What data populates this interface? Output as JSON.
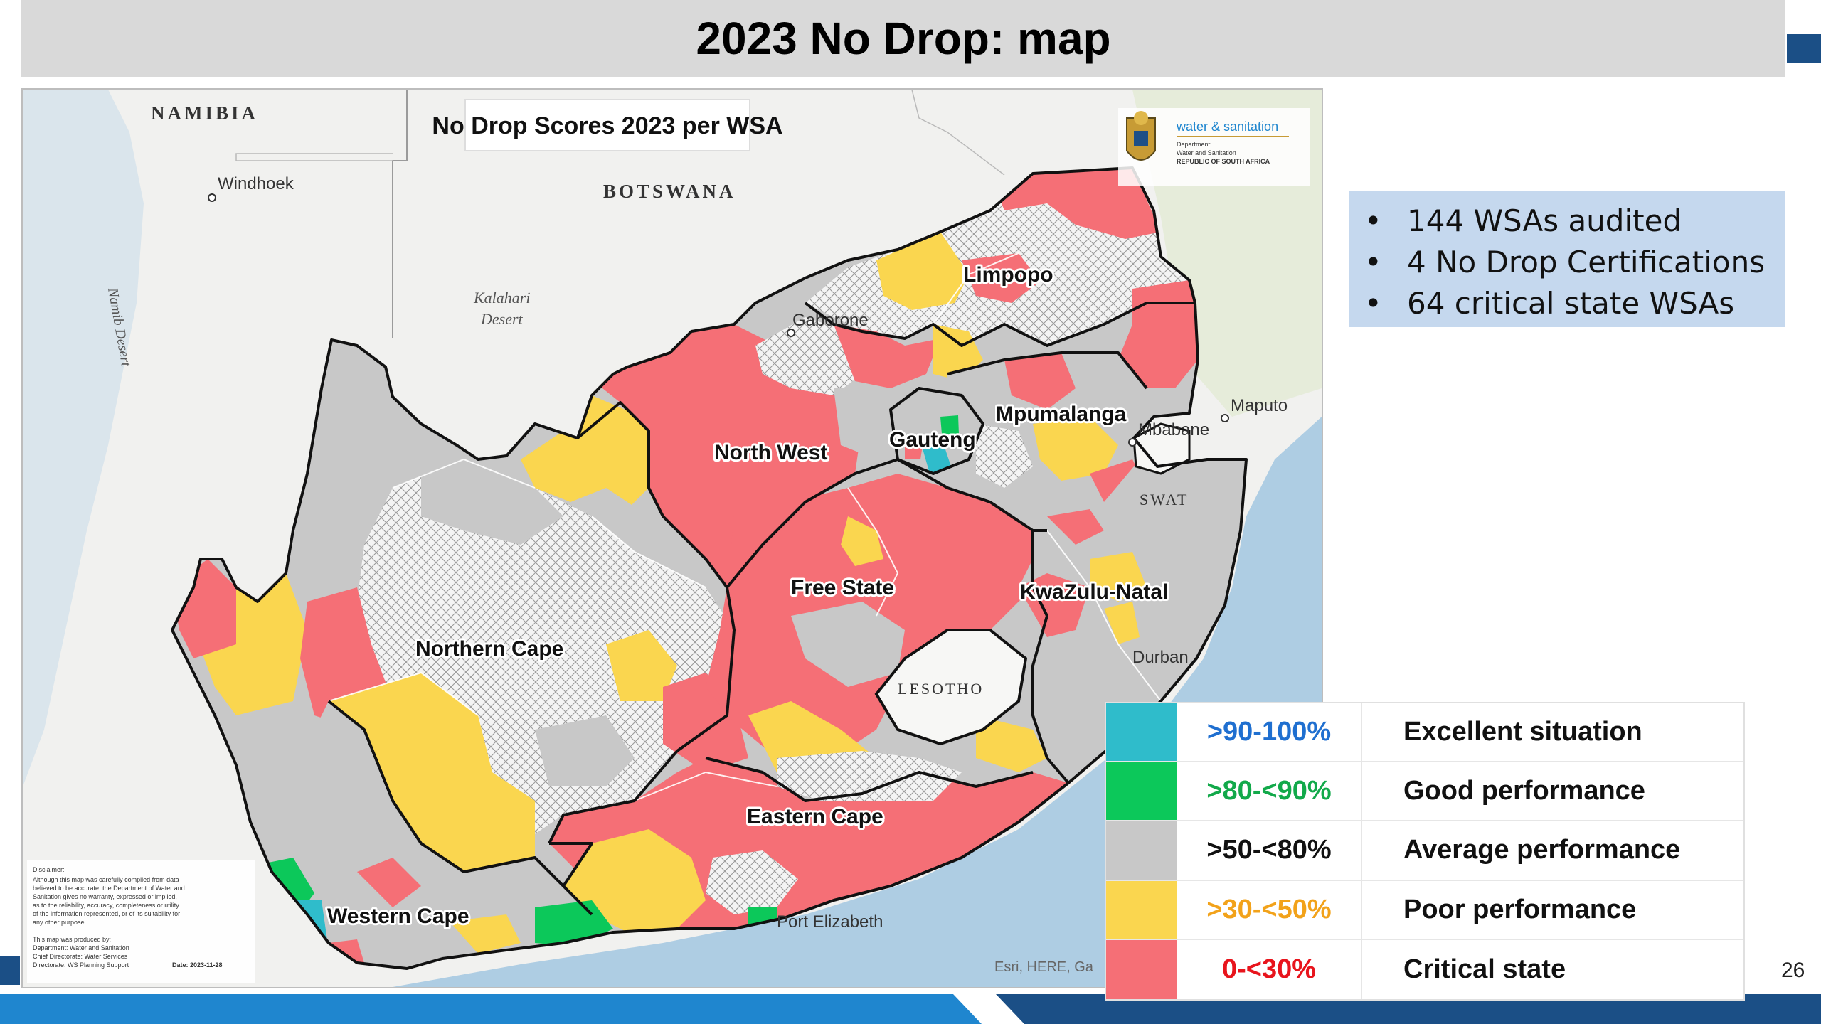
{
  "slide": {
    "title": "2023 No Drop: map",
    "page_number": "26"
  },
  "map": {
    "title": "No Drop Scores 2023 per WSA",
    "logo_line1": "water & sanitation",
    "logo_line2": "Department:",
    "logo_line3": "Water and Sanitation",
    "logo_line4": "REPUBLIC OF SOUTH AFRICA",
    "countries": {
      "namibia": "NAMIBIA",
      "botswana": "BOTSWANA",
      "lesotho": "LESOTHO",
      "swaziland": "SWAT"
    },
    "cities": {
      "windhoek": "Windhoek",
      "gaborone": "Gaborone",
      "maputo": "Maputo",
      "mbabane": "Mbabane",
      "durban": "Durban",
      "port_elizabeth": "Port Elizabeth"
    },
    "features": {
      "kalahari_1": "Kalahari",
      "kalahari_2": "Desert",
      "namib": "Namib Desert"
    },
    "provinces": {
      "limpopo": "Limpopo",
      "north_west": "North West",
      "mpumalanga": "Mpumalanga",
      "gauteng": "Gauteng",
      "free_state": "Free State",
      "kwazulu_natal": "KwaZulu-Natal",
      "northern_cape": "Northern Cape",
      "eastern_cape": "Eastern Cape",
      "western_cape": "Western Cape"
    },
    "attribution": "Esri, HERE, Ga",
    "disclaimer": {
      "heading": "Disclaimer:",
      "lines": [
        "Although this map was carefully compiled from data",
        "believed to be accurate, the Department of Water and",
        "Sanitation gives no warranty, expressed or implied,",
        "as to the reliability, accuracy, completeness or utility",
        "of the information represented, or of its suitability for",
        "any other purpose."
      ],
      "produced_lines": [
        "This map was produced by:",
        "Department: Water and Sanitation",
        "Chief Directorate: Water Services",
        "Directorate: WS Planning Support"
      ],
      "date": "Date: 2023-11-28"
    },
    "colors": {
      "ocean": "#aecde3",
      "land": "#f1f1ef",
      "excellent": "#2fbccb",
      "good": "#0cc85a",
      "average": "#c8c8c8",
      "poor": "#fad64f",
      "critical": "#f56f76",
      "outline": "#111111"
    }
  },
  "summary": {
    "items": [
      "144 WSAs audited",
      "4 No Drop Certifications",
      "64 critical state WSAs"
    ],
    "bullet": "•"
  },
  "legend": [
    {
      "range": ">90-100%",
      "label": "Excellent situation",
      "swatch": "#2fbccb",
      "text_color": "#1f6fd0"
    },
    {
      "range": ">80-<90%",
      "label": "Good performance",
      "swatch": "#0cc85a",
      "text_color": "#12a94a"
    },
    {
      "range": ">50-<80%",
      "label": "Average performance",
      "swatch": "#c8c8c8",
      "text_color": "#111111"
    },
    {
      "range": ">30-<50%",
      "label": "Poor performance",
      "swatch": "#fad64f",
      "text_color": "#f2a21a"
    },
    {
      "range": "0-<30%",
      "label": "Critical state",
      "swatch": "#f56f76",
      "text_color": "#e8141c"
    }
  ]
}
